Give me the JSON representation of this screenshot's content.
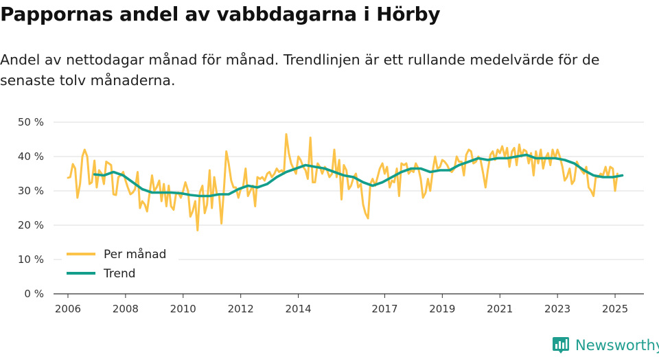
{
  "title": "Pappornas andel av vabbdagarna i Hörby",
  "subtitle": "Andel av nettodagar månad för månad. Trendlinjen är ett rullande medelvärde för de senaste tolv månaderna.",
  "brand": {
    "name": "Newsworthy",
    "icon": "newsworthy-bar-chart-icon"
  },
  "colors": {
    "monthly": "#fbc34a",
    "trend": "#139e8c",
    "grid": "#dddddd",
    "axis": "#333333",
    "brand": "#1f9d8f"
  },
  "chart_data": {
    "type": "line",
    "title": "Pappornas andel av vabbdagarna i Hörby",
    "xlabel": "",
    "ylabel": "",
    "ylim": [
      0,
      50
    ],
    "xlim": [
      2005.5,
      2026.0
    ],
    "y_ticks": [
      0,
      10,
      20,
      30,
      40,
      50
    ],
    "y_tick_labels": [
      "0 %",
      "10 %",
      "20 %",
      "30 %",
      "40 %",
      "50 %"
    ],
    "x_ticks": [
      2006,
      2008,
      2010,
      2012,
      2014,
      2017,
      2019,
      2021,
      2023,
      2025
    ],
    "x_tick_labels": [
      "2006",
      "2008",
      "2010",
      "2012",
      "2014",
      "2017",
      "2019",
      "2021",
      "2023",
      "2025"
    ],
    "grid": true,
    "legend_position": "bottom-left",
    "series": [
      {
        "name": "Per månad",
        "color": "#fbc34a",
        "points": [
          [
            2006.0,
            33.8
          ],
          [
            2006.08,
            34.0
          ],
          [
            2006.17,
            37.8
          ],
          [
            2006.25,
            36.5
          ],
          [
            2006.33,
            28.0
          ],
          [
            2006.42,
            32.0
          ],
          [
            2006.5,
            40.0
          ],
          [
            2006.58,
            42.0
          ],
          [
            2006.67,
            40.0
          ],
          [
            2006.75,
            32.0
          ],
          [
            2006.83,
            32.5
          ],
          [
            2006.92,
            38.8
          ],
          [
            2007.0,
            31.0
          ],
          [
            2007.08,
            36.0
          ],
          [
            2007.17,
            35.0
          ],
          [
            2007.25,
            32.0
          ],
          [
            2007.33,
            38.5
          ],
          [
            2007.42,
            38.0
          ],
          [
            2007.5,
            37.5
          ],
          [
            2007.58,
            29.0
          ],
          [
            2007.67,
            28.8
          ],
          [
            2007.75,
            34.0
          ],
          [
            2007.83,
            34.5
          ],
          [
            2007.92,
            35.5
          ],
          [
            2008.0,
            33.0
          ],
          [
            2008.08,
            31.0
          ],
          [
            2008.17,
            29.0
          ],
          [
            2008.25,
            29.5
          ],
          [
            2008.33,
            30.5
          ],
          [
            2008.42,
            35.5
          ],
          [
            2008.5,
            25.0
          ],
          [
            2008.58,
            27.0
          ],
          [
            2008.67,
            26.0
          ],
          [
            2008.75,
            24.0
          ],
          [
            2008.83,
            29.0
          ],
          [
            2008.92,
            34.5
          ],
          [
            2009.0,
            30.0
          ],
          [
            2009.08,
            31.0
          ],
          [
            2009.17,
            33.0
          ],
          [
            2009.25,
            27.0
          ],
          [
            2009.33,
            32.0
          ],
          [
            2009.42,
            25.5
          ],
          [
            2009.5,
            31.5
          ],
          [
            2009.58,
            25.5
          ],
          [
            2009.67,
            24.5
          ],
          [
            2009.75,
            29.0
          ],
          [
            2009.83,
            29.5
          ],
          [
            2009.92,
            28.0
          ],
          [
            2010.0,
            30.0
          ],
          [
            2010.08,
            32.5
          ],
          [
            2010.17,
            30.0
          ],
          [
            2010.25,
            22.5
          ],
          [
            2010.33,
            24.0
          ],
          [
            2010.42,
            27.0
          ],
          [
            2010.5,
            18.5
          ],
          [
            2010.58,
            29.5
          ],
          [
            2010.67,
            31.5
          ],
          [
            2010.75,
            23.5
          ],
          [
            2010.83,
            26.0
          ],
          [
            2010.92,
            36.0
          ],
          [
            2011.0,
            25.0
          ],
          [
            2011.08,
            34.0
          ],
          [
            2011.17,
            29.0
          ],
          [
            2011.25,
            29.0
          ],
          [
            2011.33,
            20.5
          ],
          [
            2011.42,
            31.0
          ],
          [
            2011.5,
            41.5
          ],
          [
            2011.58,
            38.0
          ],
          [
            2011.67,
            33.0
          ],
          [
            2011.75,
            31.0
          ],
          [
            2011.83,
            31.0
          ],
          [
            2011.92,
            28.0
          ],
          [
            2012.0,
            30.5
          ],
          [
            2012.08,
            31.0
          ],
          [
            2012.17,
            36.5
          ],
          [
            2012.25,
            28.5
          ],
          [
            2012.33,
            30.0
          ],
          [
            2012.42,
            31.5
          ],
          [
            2012.5,
            25.5
          ],
          [
            2012.58,
            34.0
          ],
          [
            2012.67,
            33.5
          ],
          [
            2012.75,
            34.0
          ],
          [
            2012.83,
            33.0
          ],
          [
            2012.92,
            35.0
          ],
          [
            2013.0,
            35.5
          ],
          [
            2013.08,
            34.0
          ],
          [
            2013.17,
            35.0
          ],
          [
            2013.25,
            36.5
          ],
          [
            2013.33,
            35.5
          ],
          [
            2013.42,
            36.0
          ],
          [
            2013.5,
            35.0
          ],
          [
            2013.58,
            46.5
          ],
          [
            2013.67,
            41.0
          ],
          [
            2013.75,
            38.0
          ],
          [
            2013.83,
            36.5
          ],
          [
            2013.92,
            35.0
          ],
          [
            2014.0,
            40.0
          ],
          [
            2014.08,
            39.0
          ],
          [
            2014.17,
            37.0
          ],
          [
            2014.25,
            36.0
          ],
          [
            2014.33,
            33.5
          ],
          [
            2014.42,
            45.5
          ],
          [
            2014.5,
            32.5
          ],
          [
            2014.58,
            32.5
          ],
          [
            2014.67,
            38.0
          ],
          [
            2014.75,
            37.0
          ],
          [
            2014.83,
            35.0
          ],
          [
            2014.92,
            37.0
          ],
          [
            2015.0,
            36.0
          ],
          [
            2015.08,
            34.0
          ],
          [
            2015.17,
            35.0
          ],
          [
            2015.25,
            42.0
          ],
          [
            2015.33,
            34.0
          ],
          [
            2015.42,
            39.0
          ],
          [
            2015.5,
            27.5
          ],
          [
            2015.58,
            37.5
          ],
          [
            2015.67,
            36.0
          ],
          [
            2015.75,
            30.5
          ],
          [
            2015.83,
            31.5
          ],
          [
            2015.92,
            34.0
          ],
          [
            2016.0,
            35.0
          ],
          [
            2016.08,
            31.0
          ],
          [
            2016.17,
            32.0
          ],
          [
            2016.25,
            26.0
          ],
          [
            2016.33,
            23.5
          ],
          [
            2016.42,
            22.0
          ],
          [
            2016.5,
            32.0
          ],
          [
            2016.58,
            33.5
          ],
          [
            2016.67,
            31.5
          ],
          [
            2016.75,
            34.0
          ],
          [
            2016.83,
            36.5
          ],
          [
            2016.92,
            38.0
          ],
          [
            2017.0,
            35.0
          ],
          [
            2017.08,
            37.0
          ],
          [
            2017.17,
            31.0
          ],
          [
            2017.25,
            33.0
          ],
          [
            2017.33,
            32.5
          ],
          [
            2017.42,
            36.5
          ],
          [
            2017.5,
            28.5
          ],
          [
            2017.58,
            38.0
          ],
          [
            2017.67,
            37.5
          ],
          [
            2017.75,
            38.0
          ],
          [
            2017.83,
            35.0
          ],
          [
            2017.92,
            36.0
          ],
          [
            2018.0,
            35.5
          ],
          [
            2018.08,
            38.0
          ],
          [
            2018.17,
            36.5
          ],
          [
            2018.25,
            33.5
          ],
          [
            2018.33,
            28.0
          ],
          [
            2018.42,
            29.5
          ],
          [
            2018.5,
            33.5
          ],
          [
            2018.58,
            30.0
          ],
          [
            2018.67,
            36.0
          ],
          [
            2018.75,
            40.0
          ],
          [
            2018.83,
            36.5
          ],
          [
            2018.92,
            37.0
          ],
          [
            2019.0,
            39.0
          ],
          [
            2019.08,
            38.5
          ],
          [
            2019.17,
            37.5
          ],
          [
            2019.25,
            36.0
          ],
          [
            2019.33,
            35.5
          ],
          [
            2019.42,
            36.5
          ],
          [
            2019.5,
            40.0
          ],
          [
            2019.58,
            38.5
          ],
          [
            2019.67,
            38.5
          ],
          [
            2019.75,
            34.5
          ],
          [
            2019.83,
            40.5
          ],
          [
            2019.92,
            42.0
          ],
          [
            2020.0,
            41.5
          ],
          [
            2020.08,
            38.0
          ],
          [
            2020.17,
            38.5
          ],
          [
            2020.25,
            40.0
          ],
          [
            2020.33,
            39.0
          ],
          [
            2020.42,
            35.0
          ],
          [
            2020.5,
            31.0
          ],
          [
            2020.58,
            36.0
          ],
          [
            2020.67,
            40.5
          ],
          [
            2020.75,
            41.5
          ],
          [
            2020.83,
            39.0
          ],
          [
            2020.92,
            42.0
          ],
          [
            2021.0,
            41.0
          ],
          [
            2021.08,
            43.0
          ],
          [
            2021.17,
            40.0
          ],
          [
            2021.25,
            42.5
          ],
          [
            2021.33,
            37.0
          ],
          [
            2021.42,
            41.5
          ],
          [
            2021.5,
            42.5
          ],
          [
            2021.58,
            37.5
          ],
          [
            2021.67,
            43.5
          ],
          [
            2021.75,
            40.0
          ],
          [
            2021.83,
            42.0
          ],
          [
            2021.92,
            41.5
          ],
          [
            2022.0,
            38.0
          ],
          [
            2022.08,
            41.0
          ],
          [
            2022.17,
            34.5
          ],
          [
            2022.25,
            41.5
          ],
          [
            2022.33,
            38.0
          ],
          [
            2022.42,
            42.0
          ],
          [
            2022.5,
            36.5
          ],
          [
            2022.58,
            39.5
          ],
          [
            2022.67,
            41.0
          ],
          [
            2022.75,
            37.5
          ],
          [
            2022.83,
            42.0
          ],
          [
            2022.92,
            39.5
          ],
          [
            2023.0,
            42.0
          ],
          [
            2023.08,
            40.0
          ],
          [
            2023.17,
            37.0
          ],
          [
            2023.25,
            33.0
          ],
          [
            2023.33,
            34.0
          ],
          [
            2023.42,
            36.5
          ],
          [
            2023.5,
            32.0
          ],
          [
            2023.58,
            33.0
          ],
          [
            2023.67,
            38.5
          ],
          [
            2023.75,
            37.0
          ],
          [
            2023.83,
            36.0
          ],
          [
            2023.92,
            35.0
          ],
          [
            2024.0,
            37.0
          ],
          [
            2024.08,
            31.0
          ],
          [
            2024.17,
            30.0
          ],
          [
            2024.25,
            28.5
          ],
          [
            2024.33,
            34.0
          ],
          [
            2024.42,
            34.0
          ],
          [
            2024.5,
            35.0
          ],
          [
            2024.58,
            34.5
          ],
          [
            2024.67,
            37.0
          ],
          [
            2024.75,
            34.0
          ],
          [
            2024.83,
            37.0
          ],
          [
            2024.92,
            36.5
          ],
          [
            2025.0,
            30.0
          ],
          [
            2025.08,
            35.0
          ]
        ]
      },
      {
        "name": "Trend",
        "color": "#139e8c",
        "points": [
          [
            2006.92,
            34.8
          ],
          [
            2007.25,
            34.5
          ],
          [
            2007.58,
            35.5
          ],
          [
            2007.92,
            34.5
          ],
          [
            2008.25,
            32.5
          ],
          [
            2008.58,
            30.5
          ],
          [
            2008.92,
            29.5
          ],
          [
            2009.25,
            29.5
          ],
          [
            2009.58,
            29.5
          ],
          [
            2009.92,
            29.3
          ],
          [
            2010.25,
            28.8
          ],
          [
            2010.58,
            28.5
          ],
          [
            2010.92,
            28.5
          ],
          [
            2011.25,
            29.0
          ],
          [
            2011.58,
            29.0
          ],
          [
            2011.92,
            30.5
          ],
          [
            2012.25,
            31.5
          ],
          [
            2012.58,
            31.0
          ],
          [
            2012.92,
            32.0
          ],
          [
            2013.25,
            34.0
          ],
          [
            2013.58,
            35.5
          ],
          [
            2013.92,
            36.5
          ],
          [
            2014.25,
            37.5
          ],
          [
            2014.58,
            37.0
          ],
          [
            2014.92,
            36.5
          ],
          [
            2015.25,
            35.5
          ],
          [
            2015.58,
            34.5
          ],
          [
            2015.92,
            34.0
          ],
          [
            2016.25,
            32.5
          ],
          [
            2016.58,
            31.5
          ],
          [
            2016.92,
            32.5
          ],
          [
            2017.25,
            34.0
          ],
          [
            2017.58,
            35.5
          ],
          [
            2017.92,
            36.5
          ],
          [
            2018.25,
            36.5
          ],
          [
            2018.58,
            35.5
          ],
          [
            2018.92,
            36.0
          ],
          [
            2019.25,
            36.0
          ],
          [
            2019.58,
            37.5
          ],
          [
            2019.92,
            38.5
          ],
          [
            2020.25,
            39.5
          ],
          [
            2020.58,
            39.0
          ],
          [
            2020.92,
            39.5
          ],
          [
            2021.25,
            39.5
          ],
          [
            2021.58,
            40.0
          ],
          [
            2021.92,
            40.5
          ],
          [
            2022.25,
            39.5
          ],
          [
            2022.58,
            39.5
          ],
          [
            2022.92,
            39.5
          ],
          [
            2023.25,
            39.0
          ],
          [
            2023.58,
            38.0
          ],
          [
            2023.92,
            36.0
          ],
          [
            2024.25,
            34.5
          ],
          [
            2024.58,
            34.0
          ],
          [
            2024.92,
            34.0
          ],
          [
            2025.25,
            34.5
          ]
        ]
      }
    ]
  }
}
